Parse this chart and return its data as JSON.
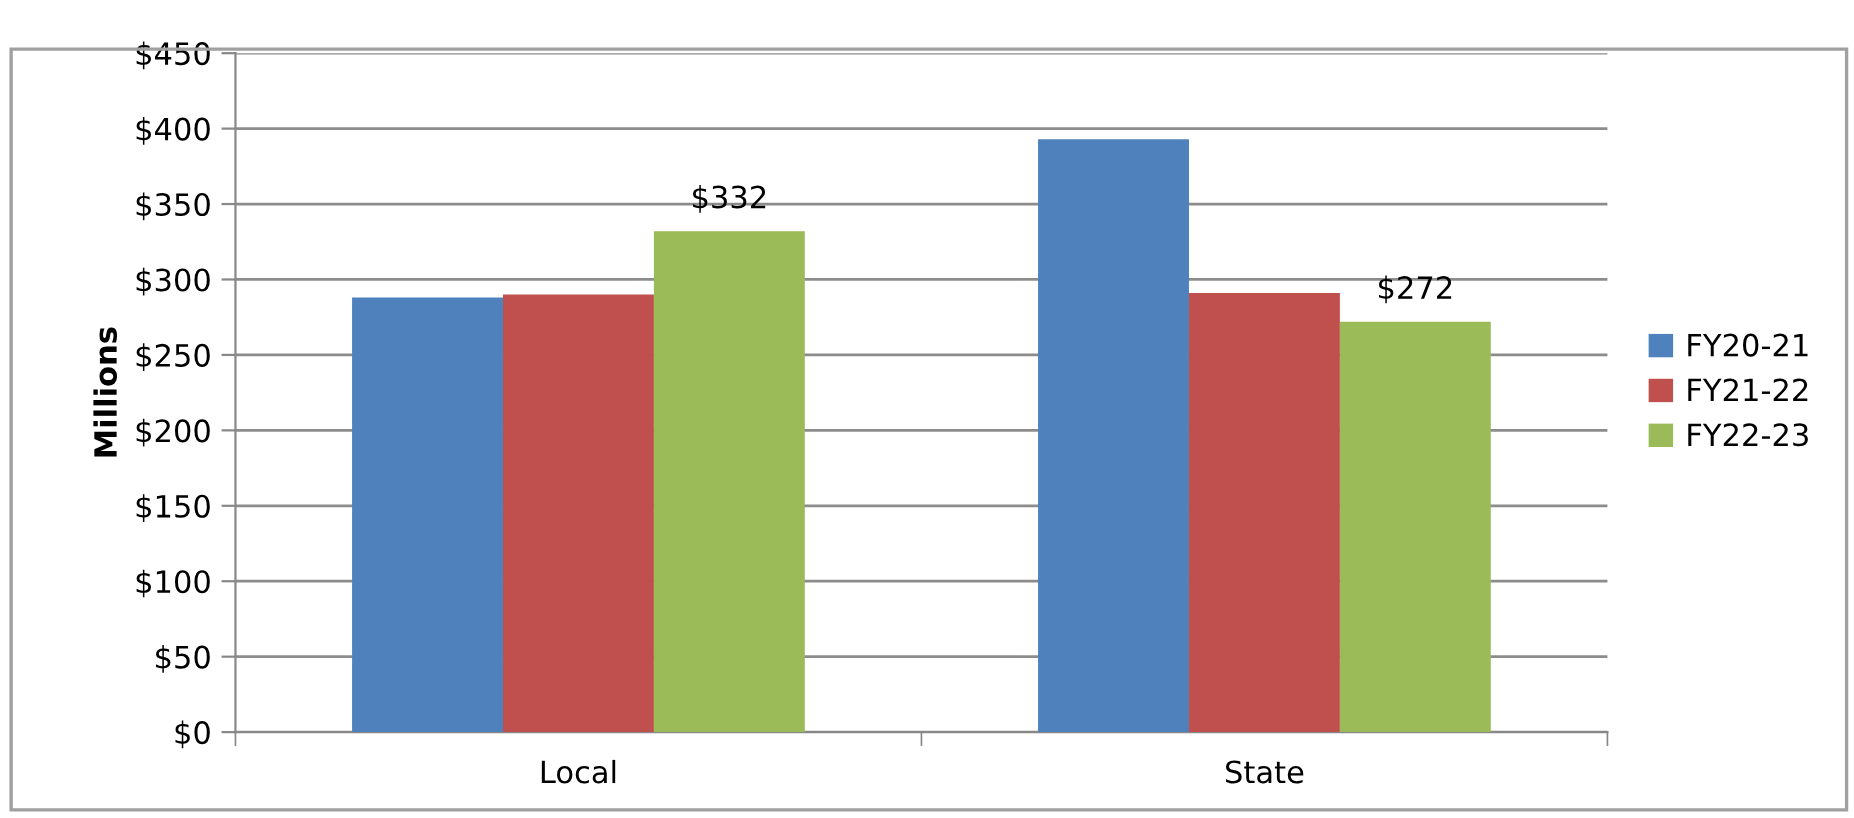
{
  "chart_data": {
    "type": "bar",
    "ylabel": "Millions",
    "categories": [
      "Local",
      "State"
    ],
    "series": [
      {
        "name": "FY20-21",
        "color": "#4f81bd",
        "values": [
          288,
          393
        ]
      },
      {
        "name": "FY21-22",
        "color": "#c0504d",
        "values": [
          290,
          291
        ]
      },
      {
        "name": "FY22-23",
        "color": "#9bbb59",
        "values": [
          332,
          272
        ],
        "value_labels": [
          "$332",
          "$272"
        ]
      }
    ],
    "ylim": [
      0,
      450
    ],
    "yticks": [
      {
        "value": 0,
        "label": "$0"
      },
      {
        "value": 50,
        "label": "$50"
      },
      {
        "value": 100,
        "label": "$100"
      },
      {
        "value": 150,
        "label": "$150"
      },
      {
        "value": 200,
        "label": "$200"
      },
      {
        "value": 250,
        "label": "$250"
      },
      {
        "value": 300,
        "label": "$300"
      },
      {
        "value": 350,
        "label": "$350"
      },
      {
        "value": 400,
        "label": "$400"
      },
      {
        "value": 450,
        "label": "$450"
      }
    ],
    "grid": "y",
    "legend": "right"
  }
}
